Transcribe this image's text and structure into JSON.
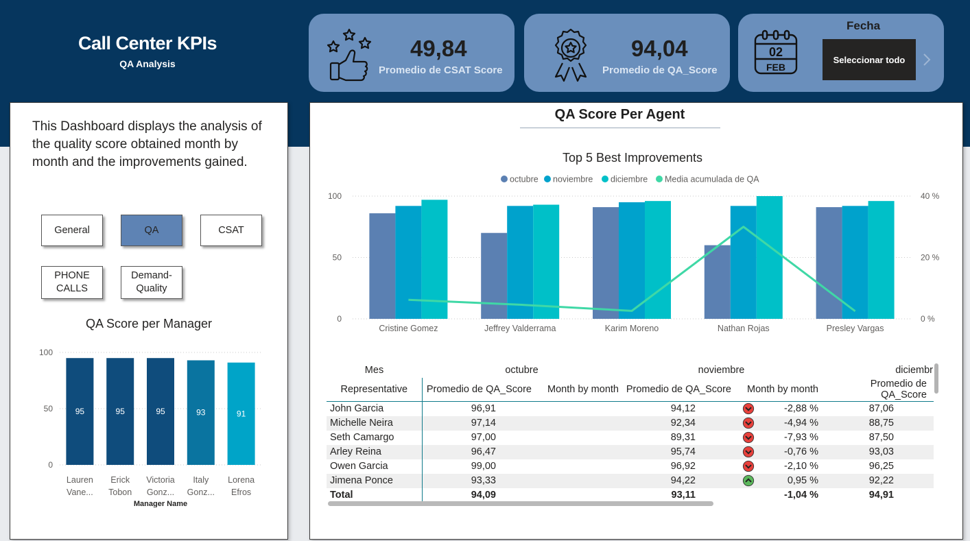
{
  "header": {
    "title": "Call Center KPIs",
    "subtitle": "QA Analysis"
  },
  "kpis": [
    {
      "value": "49,84",
      "label": "Promedio de CSAT Score",
      "icon": "thumbs-up-stars-icon"
    },
    {
      "value": "94,04",
      "label": "Promedio de QA_Score",
      "icon": "award-ribbon-icon"
    }
  ],
  "date_slicer": {
    "title": "Fecha",
    "button_label": "Seleccionar todo",
    "calendar_day": "02",
    "calendar_month": "FEB",
    "icon": "calendar-icon"
  },
  "left_panel": {
    "description": "This Dashboard displays the analysis of the quality score obtained month by month and the improvements gained.",
    "nav": [
      {
        "label": "General",
        "active": false
      },
      {
        "label": "QA",
        "active": true
      },
      {
        "label": "CSAT",
        "active": false
      },
      {
        "label": "PHONE\nCALLS",
        "active": false
      },
      {
        "label": "Demand-\nQuality",
        "active": false
      }
    ]
  },
  "right_panel": {
    "title": "QA Score Per Agent"
  },
  "chart_data": [
    {
      "type": "bar",
      "title": "QA Score per Manager",
      "xlabel": "Manager Name",
      "ylabel": "",
      "categories": [
        [
          "Lauren",
          "Vane..."
        ],
        [
          "Erick",
          "Tobon"
        ],
        [
          "Victoria",
          "Gonz..."
        ],
        [
          "Italy",
          "Gonz..."
        ],
        [
          "Lorena",
          "Efros"
        ]
      ],
      "values": [
        95,
        95,
        95,
        93,
        91
      ],
      "data_labels": [
        "95",
        "95",
        "95",
        "93",
        "91"
      ],
      "colors": [
        "#0f4c7c",
        "#0f4c7c",
        "#0f4c7c",
        "#0a74a0",
        "#00a4c8"
      ],
      "ylim": [
        0,
        100
      ],
      "yticks": [
        "0",
        "50",
        "100"
      ],
      "grid": true
    },
    {
      "type": "bar",
      "title": "Top 5 Best Improvements",
      "categories": [
        "Cristine Gomez",
        "Jeffrey Valderrama",
        "Karim Moreno",
        "Nathan Rojas",
        "Presley Vargas"
      ],
      "series": [
        {
          "name": "octubre",
          "type": "bar",
          "color": "#5b80b2",
          "values": [
            86,
            70,
            91,
            60,
            91
          ]
        },
        {
          "name": "noviembre",
          "type": "bar",
          "color": "#00a2cc",
          "values": [
            92,
            92,
            95,
            92,
            92
          ]
        },
        {
          "name": "diciembre",
          "type": "bar",
          "color": "#00c0c8",
          "values": [
            97,
            93,
            96,
            100,
            96
          ]
        },
        {
          "name": "Media acumulada de QA",
          "type": "line",
          "axis": "right",
          "color": "#3fd8a6",
          "values": [
            6.2,
            4.6,
            2.6,
            30,
            2.5
          ]
        }
      ],
      "ylim": [
        0,
        100
      ],
      "y2lim": [
        0,
        40
      ],
      "yticks": [
        "0",
        "50",
        "100"
      ],
      "y2ticks": [
        "0 %",
        "20 %",
        "40 %"
      ],
      "legend": "top-center",
      "grid": true
    }
  ],
  "table": {
    "header_months": {
      "label": "Mes",
      "m1": "octubre",
      "m2": "noviembre",
      "m3": "diciembr"
    },
    "header_cols": [
      "Representative",
      "Promedio de QA_Score",
      "Month by month",
      "Promedio de QA_Score",
      "Month by month",
      "Promedio de QA_Score"
    ],
    "rows": [
      {
        "name": "John Garcia",
        "oct": "96,91",
        "nov": "94,12",
        "mbm": "-2,88 %",
        "trend": "down",
        "dec": "87,06"
      },
      {
        "name": "Michelle Neira",
        "oct": "97,14",
        "nov": "92,34",
        "mbm": "-4,94 %",
        "trend": "down",
        "dec": "88,75"
      },
      {
        "name": "Seth Camargo",
        "oct": "97,00",
        "nov": "89,31",
        "mbm": "-7,93 %",
        "trend": "down",
        "dec": "87,50"
      },
      {
        "name": "Arley Reina",
        "oct": "96,47",
        "nov": "95,74",
        "mbm": "-0,76 %",
        "trend": "down",
        "dec": "93,03"
      },
      {
        "name": "Owen Garcia",
        "oct": "99,00",
        "nov": "96,92",
        "mbm": "-2,10 %",
        "trend": "down",
        "dec": "96,25"
      },
      {
        "name": "Jimena Ponce",
        "oct": "93,33",
        "nov": "94,22",
        "mbm": "0,95 %",
        "trend": "up",
        "dec": "92,22"
      }
    ],
    "total": {
      "name": "Total",
      "oct": "94,09",
      "nov": "93,11",
      "mbm": "-1,04 %",
      "dec": "94,91"
    }
  }
}
